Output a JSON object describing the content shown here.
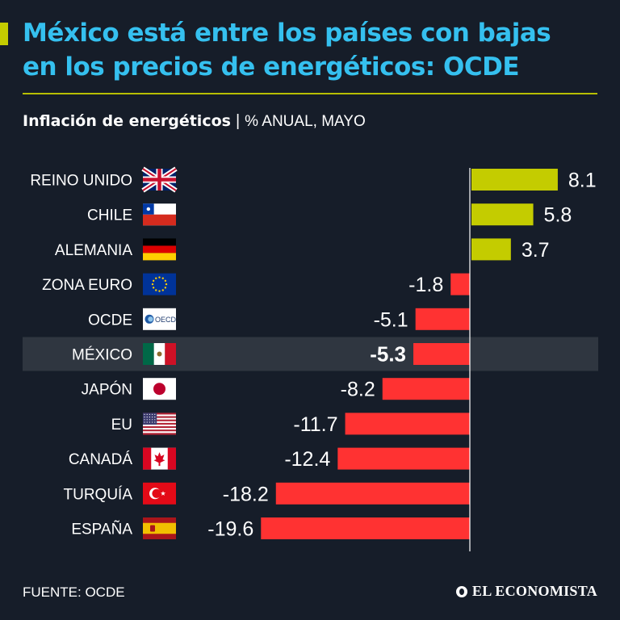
{
  "header": {
    "title": "México está entre los países con bajas\nen los precios de energéticos: OCDE",
    "subtitle_main": "Inflación de energéticos",
    "subtitle_sep": "|",
    "subtitle_unit": "% ANUAL, MAYO"
  },
  "colors": {
    "background": "#161d29",
    "title": "#35c0ef",
    "accent": "#c4cc00",
    "positive": "#c4cc00",
    "negative": "#ff3232",
    "highlight_row": "#2f3640"
  },
  "chart_data": {
    "type": "bar",
    "orientation": "horizontal",
    "title": "Inflación de energéticos",
    "unit": "% ANUAL, MAYO",
    "categories": [
      "REINO UNIDO",
      "CHILE",
      "ALEMANIA",
      "ZONA EURO",
      "OCDE",
      "MÉXICO",
      "JAPÓN",
      "EU",
      "CANADÁ",
      "TURQUÍA",
      "ESPAÑA"
    ],
    "values": [
      8.1,
      5.8,
      3.7,
      -1.8,
      -5.1,
      -5.3,
      -8.2,
      -11.7,
      -12.4,
      -18.2,
      -19.6
    ],
    "labels": [
      "8.1",
      "5.8",
      "3.7",
      "-1.8",
      "-5.1",
      "-5.3",
      "-8.2",
      "-11.7",
      "-12.4",
      "-18.2",
      "-19.6"
    ],
    "highlight": "MÉXICO",
    "flags": [
      "uk-flag-icon",
      "chile-flag-icon",
      "germany-flag-icon",
      "eu-flag-icon",
      "oecd-logo-icon",
      "mexico-flag-icon",
      "japan-flag-icon",
      "usa-flag-icon",
      "canada-flag-icon",
      "turkey-flag-icon",
      "spain-flag-icon"
    ],
    "oecd_logo_text": "OECD",
    "xlim": [
      -20,
      9
    ]
  },
  "footer": {
    "source": "FUENTE: OCDE",
    "brand": "EL ECONOMISTA"
  }
}
